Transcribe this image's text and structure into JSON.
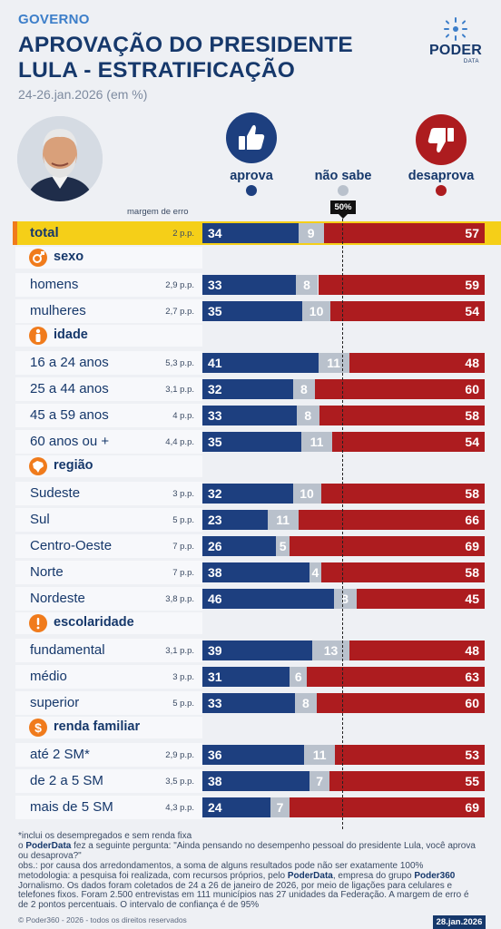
{
  "header": {
    "kicker": "GOVERNO",
    "title_line1": "APROVAÇÃO DO PRESIDENTE",
    "title_line2": "LULA - ESTRATIFICAÇÃO",
    "subtitle": "24-26.jan.2026 (em %)"
  },
  "logo": {
    "word": "PODER",
    "sub": "DATA"
  },
  "legend": {
    "approve": "aprova",
    "unknown": "não sabe",
    "disapprove": "desaprova",
    "margin_header": "margem de erro",
    "reference_label": "50%"
  },
  "colors": {
    "approve": "#1d3f7f",
    "unknown": "#b9c1cc",
    "disapprove": "#ad1c1f",
    "highlight": "#f5cf18",
    "section_icon": "#f07b1c"
  },
  "chart_data": {
    "type": "bar",
    "stacked": true,
    "orientation": "horizontal",
    "title": "APROVAÇÃO DO PRESIDENTE LULA - ESTRATIFICAÇÃO",
    "series_names": [
      "aprova",
      "não sabe",
      "desaprova"
    ],
    "reference_line": 50,
    "xlim": [
      0,
      100
    ],
    "groups": [
      {
        "section": "",
        "rows": [
          {
            "label": "total",
            "margin": "2 p.p.",
            "values": [
              34,
              9,
              57
            ],
            "highlight": true
          }
        ]
      },
      {
        "section": "sexo",
        "icon": "gender-icon",
        "rows": [
          {
            "label": "homens",
            "margin": "2,9 p.p.",
            "values": [
              33,
              8,
              59
            ]
          },
          {
            "label": "mulheres",
            "margin": "2,7 p.p.",
            "values": [
              35,
              10,
              54
            ]
          }
        ]
      },
      {
        "section": "idade",
        "icon": "person-icon",
        "rows": [
          {
            "label": "16 a 24 anos",
            "margin": "5,3 p.p.",
            "values": [
              41,
              11,
              48
            ]
          },
          {
            "label": "25 a 44 anos",
            "margin": "3,1 p.p.",
            "values": [
              32,
              8,
              60
            ]
          },
          {
            "label": "45 a 59 anos",
            "margin": "4 p.p.",
            "values": [
              33,
              8,
              58
            ]
          },
          {
            "label": "60 anos ou +",
            "margin": "4,4 p.p.",
            "values": [
              35,
              11,
              54
            ]
          }
        ]
      },
      {
        "section": "região",
        "icon": "brazil-map-icon",
        "rows": [
          {
            "label": "Sudeste",
            "margin": "3 p.p.",
            "values": [
              32,
              10,
              58
            ]
          },
          {
            "label": "Sul",
            "margin": "5 p.p.",
            "values": [
              23,
              11,
              66
            ]
          },
          {
            "label": "Centro-Oeste",
            "margin": "7 p.p.",
            "values": [
              26,
              5,
              69
            ]
          },
          {
            "label": "Norte",
            "margin": "7 p.p.",
            "values": [
              38,
              4,
              58
            ]
          },
          {
            "label": "Nordeste",
            "margin": "3,8 p.p.",
            "values": [
              46,
              8,
              45
            ]
          }
        ]
      },
      {
        "section": "escolaridade",
        "icon": "exclamation-icon",
        "rows": [
          {
            "label": "fundamental",
            "margin": "3,1 p.p.",
            "values": [
              39,
              13,
              48
            ]
          },
          {
            "label": "médio",
            "margin": "3 p.p.",
            "values": [
              31,
              6,
              63
            ]
          },
          {
            "label": "superior",
            "margin": "5 p.p.",
            "values": [
              33,
              8,
              60
            ]
          }
        ]
      },
      {
        "section": "renda familiar",
        "icon": "dollar-icon",
        "rows": [
          {
            "label": "até 2 SM*",
            "margin": "2,9 p.p.",
            "values": [
              36,
              11,
              53
            ]
          },
          {
            "label": "de 2 a 5 SM",
            "margin": "3,5 p.p.",
            "values": [
              38,
              7,
              55
            ]
          },
          {
            "label": "mais de 5 SM",
            "margin": "4,3 p.p.",
            "values": [
              24,
              7,
              69
            ]
          }
        ]
      }
    ]
  },
  "footnotes": {
    "note1": "*inclui os desempregados e sem renda fixa",
    "question_pre": "o ",
    "question_brand": "PoderData",
    "question_post": " fez a seguinte pergunta: \"Ainda pensando no desempenho pessoal do presidente Lula, você aprova ou desaprova?\"",
    "obs": "obs.: por causa dos arredondamentos, a soma de alguns resultados pode não ser exatamente 100%",
    "method_pre": "metodologia: a pesquisa foi realizada, com recursos próprios, pelo ",
    "method_brand1": "PoderData",
    "method_mid": ", empresa do grupo ",
    "method_brand2": "Poder360",
    "method_post": " Jornalismo. Os dados foram coletados de 24 a 26 de janeiro de 2026, por meio de ligações para celulares e telefones fixos. Foram 2.500 entrevistas em 111 municípios nas 27 unidades da Federação. A margem de erro é de 2 pontos percentuais. O intervalo de confiança é de 95%",
    "copyright": "© Poder360 - 2026 - todos os direitos reservados",
    "date": "28.jan.2026"
  }
}
